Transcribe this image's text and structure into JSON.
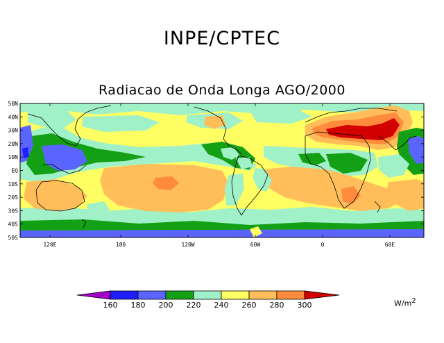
{
  "header": {
    "organization": "INPE/CPTEC"
  },
  "map": {
    "title": "Radiacao de Onda Longa AGO/2000",
    "lat_labels": [
      "50N",
      "40N",
      "30N",
      "20N",
      "10N",
      "EQ",
      "10S",
      "20S",
      "30S",
      "40S",
      "50S"
    ],
    "lon_labels": [
      "120E",
      "180",
      "120W",
      "60W",
      "0",
      "60E"
    ],
    "colors": {
      "magenta": "#a000c8",
      "blue_dark": "#1e1eff",
      "blue": "#5a64ff",
      "green": "#14a014",
      "light_green": "#a0f0c8",
      "yellow": "#ffff64",
      "light_orange": "#ffbe5a",
      "orange": "#ff8c3c",
      "red": "#d20000"
    }
  },
  "colorbar": {
    "ticks": [
      "160",
      "180",
      "200",
      "220",
      "240",
      "260",
      "280",
      "300"
    ],
    "unit_base": "W/m",
    "unit_exp": "2"
  }
}
